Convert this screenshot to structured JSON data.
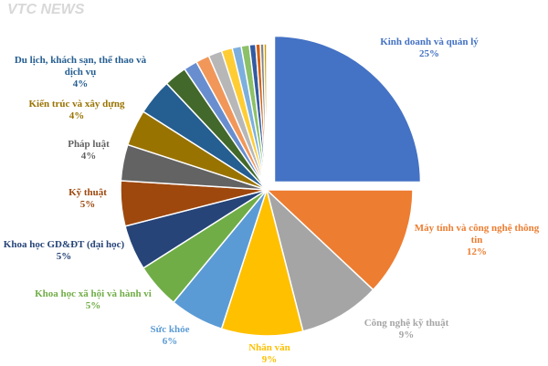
{
  "chart_data": {
    "type": "pie",
    "watermark": "VTC NEWS",
    "categories": [
      "Kinh doanh và quản lý",
      "Máy tính và công nghệ thông tin",
      "Công nghệ kỹ thuật",
      "Nhân văn",
      "Sức khỏe",
      "Khoa học xã hội và hành vi",
      "Khoa học GD&ĐT (đại học)",
      "Kỹ thuật",
      "Pháp luật",
      "Kiến trúc và xây dựng",
      "Du lịch, khách sạn, thể thao và dịch vụ",
      null,
      null,
      null,
      null,
      null,
      null,
      null,
      null,
      null,
      null,
      null
    ],
    "values": [
      25,
      12,
      9,
      9,
      6,
      5,
      5,
      5,
      4,
      4,
      4,
      2.5,
      1.5,
      1.5,
      1.5,
      1.2,
      1,
      0.9,
      0.7,
      0.5,
      0.4,
      0.3
    ],
    "value_labels": [
      "25%",
      "12%",
      "9%",
      "9%",
      "6%",
      "5%",
      "5%",
      "5%",
      "4%",
      "4%",
      "4%",
      null,
      null,
      null,
      null,
      null,
      null,
      null,
      null,
      null,
      null,
      null
    ],
    "colors": [
      "#4472c4",
      "#ed7d31",
      "#a5a5a5",
      "#ffc000",
      "#5b9bd5",
      "#70ad47",
      "#264478",
      "#9e480e",
      "#636363",
      "#997300",
      "#255e91",
      "#43682b",
      "#698ed0",
      "#f1975a",
      "#b7b7b7",
      "#ffcd33",
      "#7cafdd",
      "#8cc168",
      "#335aa1",
      "#d26012",
      "#848484",
      "#cc9a00"
    ],
    "explode": [
      0
    ]
  }
}
